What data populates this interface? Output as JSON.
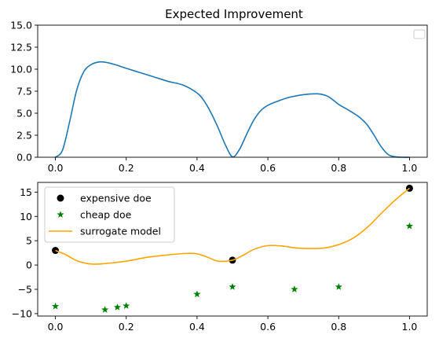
{
  "chart_data": [
    {
      "type": "line",
      "title": "Expected Improvement",
      "xlabel": "",
      "ylabel": "",
      "xlim": [
        -0.05,
        1.05
      ],
      "ylim": [
        0,
        15
      ],
      "xticks": [
        0.0,
        0.2,
        0.4,
        0.6,
        0.8,
        1.0
      ],
      "xtick_labels": [
        "0.0",
        "0.2",
        "0.4",
        "0.6",
        "0.8",
        "1.0"
      ],
      "yticks": [
        0,
        2.5,
        5,
        7.5,
        10,
        12.5,
        15
      ],
      "ytick_labels": [
        "0.0",
        "2.5",
        "5.0",
        "7.5",
        "10.0",
        "12.5",
        "15.0"
      ],
      "legend": "top-right (empty)",
      "grid": false,
      "series": [
        {
          "color": "#1f77b4",
          "x": [
            0.0,
            0.02,
            0.04,
            0.06,
            0.08,
            0.1,
            0.12,
            0.14,
            0.17,
            0.2,
            0.24,
            0.28,
            0.32,
            0.36,
            0.4,
            0.42,
            0.44,
            0.46,
            0.48,
            0.5,
            0.52,
            0.54,
            0.56,
            0.58,
            0.6,
            0.63,
            0.66,
            0.7,
            0.74,
            0.77,
            0.8,
            0.83,
            0.86,
            0.88,
            0.9,
            0.92,
            0.94,
            0.96,
            0.98,
            1.0
          ],
          "y": [
            0.0,
            0.8,
            4.0,
            7.6,
            9.7,
            10.5,
            10.8,
            10.8,
            10.5,
            10.1,
            9.6,
            9.1,
            8.6,
            8.2,
            7.3,
            6.4,
            5.0,
            3.3,
            1.4,
            0.05,
            0.9,
            2.6,
            4.2,
            5.3,
            5.9,
            6.4,
            6.8,
            7.1,
            7.2,
            6.9,
            6.0,
            5.3,
            4.5,
            3.7,
            2.5,
            1.2,
            0.3,
            0.05,
            0.0,
            0.0
          ]
        }
      ]
    },
    {
      "type": "line",
      "title": "",
      "xlabel": "",
      "ylabel": "",
      "xlim": [
        -0.05,
        1.05
      ],
      "ylim": [
        -10.5,
        17
      ],
      "xticks": [
        0.0,
        0.2,
        0.4,
        0.6,
        0.8,
        1.0
      ],
      "xtick_labels": [
        "0.0",
        "0.2",
        "0.4",
        "0.6",
        "0.8",
        "1.0"
      ],
      "yticks": [
        -10,
        -5,
        0,
        5,
        10,
        15
      ],
      "ytick_labels": [
        "−10",
        "−5",
        "0",
        "5",
        "10",
        "15"
      ],
      "legend": "top-left",
      "grid": false,
      "series": [
        {
          "name": "expensive doe",
          "kind": "scatter",
          "marker": "circle",
          "color": "#000000",
          "x": [
            0.0,
            0.5,
            1.0
          ],
          "y": [
            3.0,
            1.0,
            15.8
          ]
        },
        {
          "name": "cheap doe",
          "kind": "scatter",
          "marker": "star",
          "color": "#008000",
          "x": [
            0.0,
            0.14,
            0.175,
            0.2,
            0.4,
            0.5,
            0.675,
            0.8,
            1.0
          ],
          "y": [
            -8.5,
            -9.2,
            -8.7,
            -8.4,
            -6.0,
            -4.5,
            -5.0,
            -4.5,
            8.0
          ]
        },
        {
          "name": "surrogate model",
          "kind": "line",
          "color": "#ffa500",
          "x": [
            0.0,
            0.03,
            0.06,
            0.1,
            0.14,
            0.2,
            0.26,
            0.32,
            0.37,
            0.4,
            0.43,
            0.46,
            0.5,
            0.53,
            0.56,
            0.6,
            0.64,
            0.68,
            0.72,
            0.76,
            0.8,
            0.84,
            0.88,
            0.92,
            0.96,
            1.0
          ],
          "y": [
            3.0,
            2.1,
            0.9,
            0.2,
            0.3,
            0.8,
            1.6,
            2.1,
            2.4,
            2.3,
            1.6,
            0.8,
            1.0,
            2.0,
            3.2,
            4.0,
            3.9,
            3.5,
            3.4,
            3.5,
            4.2,
            5.5,
            7.7,
            10.6,
            13.4,
            15.8
          ]
        }
      ]
    }
  ]
}
